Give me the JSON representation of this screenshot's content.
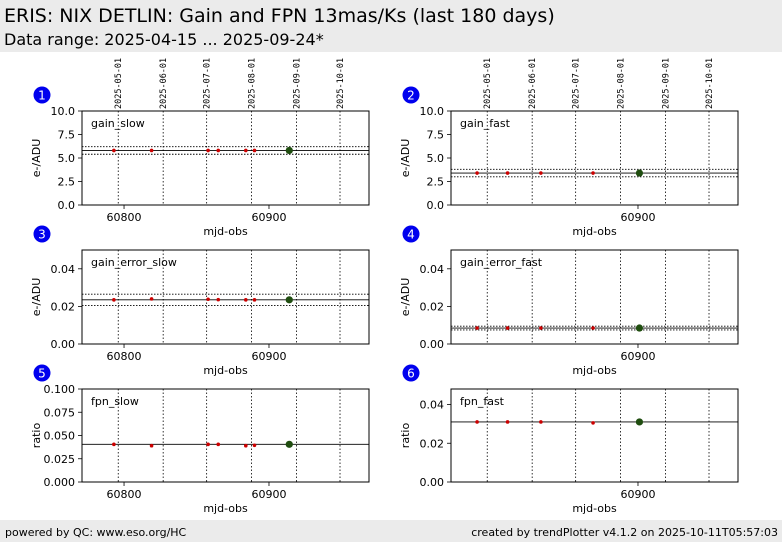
{
  "header": {
    "title": "ERIS: NIX DETLIN: Gain and FPN 13mas/Ks (last 180 days)",
    "subtitle": "Data range: 2025-04-15 ... 2025-09-24*"
  },
  "footer": {
    "left": "powered by QC: www.eso.org/HC",
    "right": "created by trendPlotter v4.1.2 on 2025-10-11T05:57:03"
  },
  "colors": {
    "header_bg": "#ebebeb",
    "badge": "#0000ee",
    "point": "#cc0000",
    "latest_point": "#1f4d0f"
  },
  "chart_data": [
    {
      "id": 1,
      "type": "scatter",
      "label": "gain_slow",
      "xlabel": "mjd-obs",
      "ylabel": "e-/ADU",
      "xlim": [
        60771,
        60969
      ],
      "ylim": [
        0,
        10
      ],
      "yticks": [
        "0.0",
        "2.5",
        "5.0",
        "7.5",
        "10.0"
      ],
      "ytick_values": [
        0,
        2.5,
        5,
        7.5,
        10
      ],
      "xticks": [
        "60800",
        "60900"
      ],
      "xtick_values": [
        60800,
        60900
      ],
      "date_lines": [
        60796,
        60827,
        60857,
        60888,
        60919,
        60949
      ],
      "date_labels": [
        "2025-05-01",
        "2025-06-01",
        "2025-07-01",
        "2025-08-01",
        "2025-09-01",
        "2025-10-01"
      ],
      "hlines": [
        {
          "y": 5.8,
          "style": "solid"
        },
        {
          "y": 6.2,
          "style": "dotted"
        },
        {
          "y": 5.4,
          "style": "dotted"
        }
      ],
      "points": {
        "x": [
          60793,
          60819,
          60858,
          60865,
          60884,
          60890
        ],
        "y": [
          5.8,
          5.8,
          5.8,
          5.8,
          5.8,
          5.8
        ]
      },
      "latest": {
        "x": [
          60914
        ],
        "y": [
          5.8
        ]
      }
    },
    {
      "id": 2,
      "type": "scatter",
      "label": "gain_fast",
      "xlabel": "mjd-obs",
      "ylabel": "e-/ADU",
      "xlim": [
        60771,
        60969
      ],
      "ylim": [
        0,
        10
      ],
      "yticks": [
        "0.0",
        "2.5",
        "5.0",
        "7.5",
        "10.0"
      ],
      "ytick_values": [
        0,
        2.5,
        5,
        7.5,
        10
      ],
      "xticks": [
        "60900"
      ],
      "xtick_values": [
        60900
      ],
      "date_lines": [
        60796,
        60827,
        60857,
        60888,
        60919,
        60949
      ],
      "date_labels": [
        "2025-05-01",
        "2025-06-01",
        "2025-07-01",
        "2025-08-01",
        "2025-09-01",
        "2025-10-01"
      ],
      "hlines": [
        {
          "y": 3.4,
          "style": "solid"
        },
        {
          "y": 3.8,
          "style": "dotted"
        },
        {
          "y": 3.0,
          "style": "dotted"
        }
      ],
      "points": {
        "x": [
          60789,
          60810,
          60833,
          60869
        ],
        "y": [
          3.4,
          3.4,
          3.4,
          3.4
        ]
      },
      "latest": {
        "x": [
          60901
        ],
        "y": [
          3.4
        ]
      }
    },
    {
      "id": 3,
      "type": "scatter",
      "label": "gain_error_slow",
      "xlabel": "mjd-obs",
      "ylabel": "e-/ADU",
      "xlim": [
        60771,
        60969
      ],
      "ylim": [
        0,
        0.05
      ],
      "yticks": [
        "0.00",
        "0.02",
        "0.04"
      ],
      "ytick_values": [
        0,
        0.02,
        0.04
      ],
      "xticks": [
        "60800",
        "60900"
      ],
      "xtick_values": [
        60800,
        60900
      ],
      "date_lines": [
        60796,
        60827,
        60857,
        60888,
        60919,
        60949
      ],
      "date_labels": [],
      "hlines": [
        {
          "y": 0.0235,
          "style": "solid"
        },
        {
          "y": 0.0265,
          "style": "dotted"
        },
        {
          "y": 0.0205,
          "style": "dotted"
        }
      ],
      "points": {
        "x": [
          60793,
          60819,
          60858,
          60865,
          60884,
          60890
        ],
        "y": [
          0.0235,
          0.024,
          0.0238,
          0.0236,
          0.0235,
          0.0235
        ]
      },
      "latest": {
        "x": [
          60914
        ],
        "y": [
          0.0235
        ]
      }
    },
    {
      "id": 4,
      "type": "scatter",
      "label": "gain_error_fast",
      "xlabel": "mjd-obs",
      "ylabel": "e-/ADU",
      "xlim": [
        60771,
        60969
      ],
      "ylim": [
        0,
        0.05
      ],
      "yticks": [
        "0.00",
        "0.02",
        "0.04"
      ],
      "ytick_values": [
        0,
        0.02,
        0.04
      ],
      "xticks": [
        "60900"
      ],
      "xtick_values": [
        60900
      ],
      "date_lines": [
        60796,
        60827,
        60857,
        60888,
        60919,
        60949
      ],
      "date_labels": [],
      "hlines": [
        {
          "y": 0.0085,
          "style": "solid"
        },
        {
          "y": 0.0095,
          "style": "dotted"
        },
        {
          "y": 0.0075,
          "style": "dotted"
        }
      ],
      "points": {
        "x": [
          60789,
          60810,
          60833,
          60869
        ],
        "y": [
          0.0085,
          0.0085,
          0.0085,
          0.0085
        ]
      },
      "latest": {
        "x": [
          60901
        ],
        "y": [
          0.0085
        ]
      }
    },
    {
      "id": 5,
      "type": "scatter",
      "label": "fpn_slow",
      "xlabel": "mjd-obs",
      "ylabel": "ratio",
      "xlim": [
        60771,
        60969
      ],
      "ylim": [
        0,
        0.1
      ],
      "yticks": [
        "0.000",
        "0.025",
        "0.050",
        "0.075",
        "0.100"
      ],
      "ytick_values": [
        0,
        0.025,
        0.05,
        0.075,
        0.1
      ],
      "xticks": [
        "60800",
        "60900"
      ],
      "xtick_values": [
        60800,
        60900
      ],
      "date_lines": [
        60796,
        60827,
        60857,
        60888,
        60919,
        60949
      ],
      "date_labels": [],
      "hlines": [
        {
          "y": 0.0405,
          "style": "solid"
        }
      ],
      "points": {
        "x": [
          60793,
          60819,
          60858,
          60865,
          60884,
          60890
        ],
        "y": [
          0.0405,
          0.039,
          0.0405,
          0.0405,
          0.039,
          0.0395
        ]
      },
      "latest": {
        "x": [
          60914
        ],
        "y": [
          0.0405
        ]
      }
    },
    {
      "id": 6,
      "type": "scatter",
      "label": "fpn_fast",
      "xlabel": "mjd-obs",
      "ylabel": "ratio",
      "xlim": [
        60771,
        60969
      ],
      "ylim": [
        0,
        0.048
      ],
      "yticks": [
        "0.00",
        "0.02",
        "0.04"
      ],
      "ytick_values": [
        0,
        0.02,
        0.04
      ],
      "xticks": [
        "60900"
      ],
      "xtick_values": [
        60900
      ],
      "date_lines": [
        60796,
        60827,
        60857,
        60888,
        60919,
        60949
      ],
      "date_labels": [],
      "hlines": [
        {
          "y": 0.031,
          "style": "solid"
        }
      ],
      "points": {
        "x": [
          60789,
          60810,
          60833,
          60869
        ],
        "y": [
          0.031,
          0.031,
          0.031,
          0.0305
        ]
      },
      "latest": {
        "x": [
          60901
        ],
        "y": [
          0.031
        ]
      }
    }
  ]
}
